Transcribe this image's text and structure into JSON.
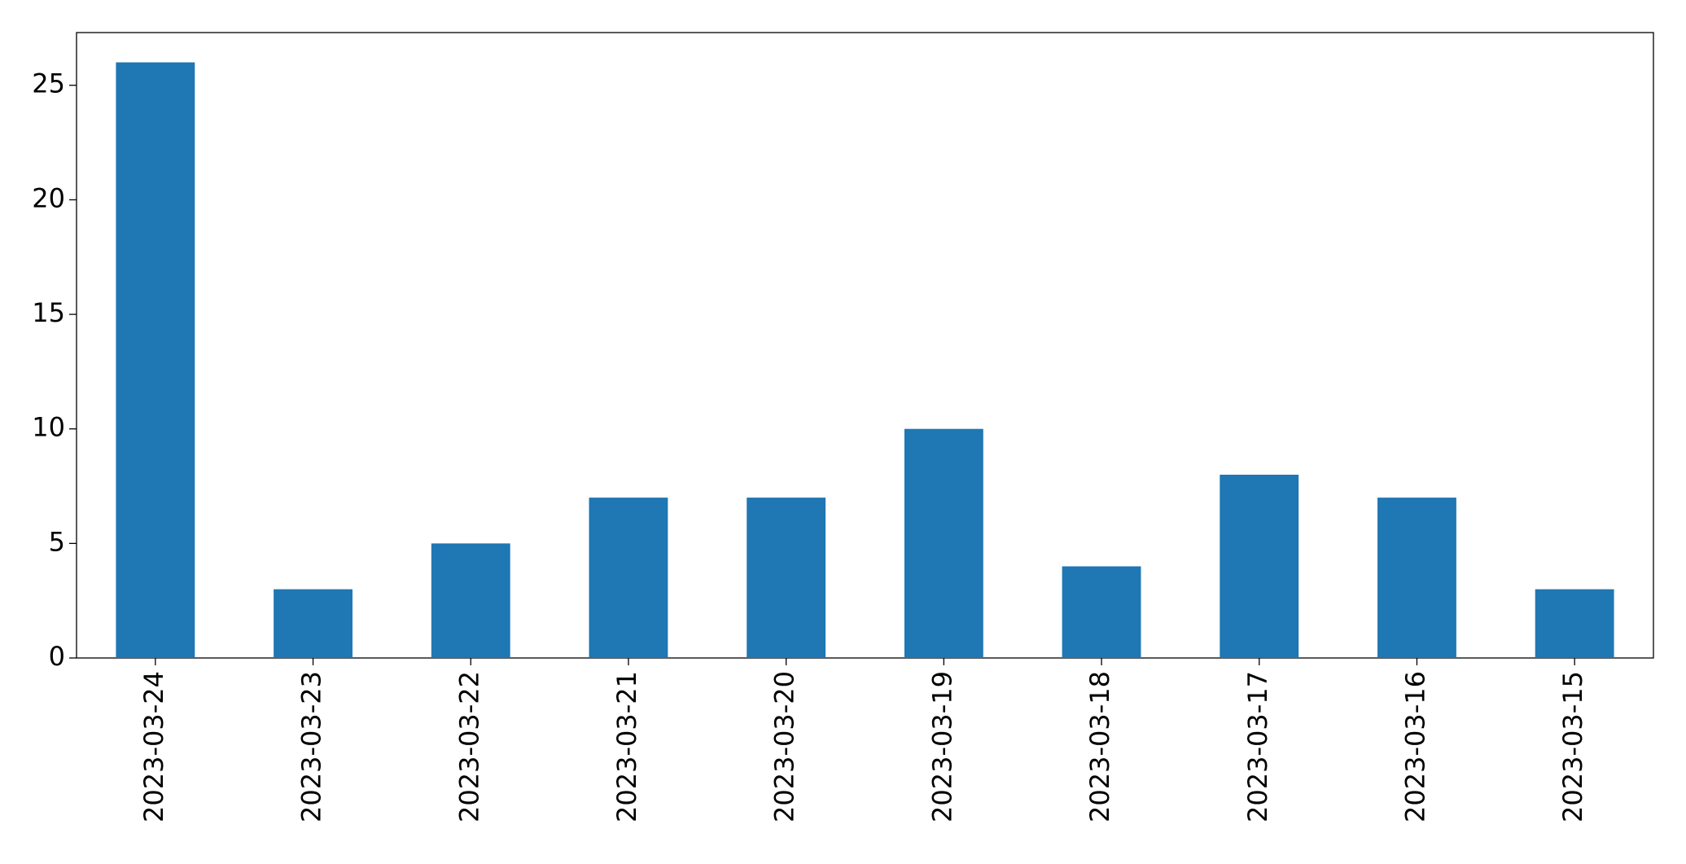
{
  "chart_data": {
    "type": "bar",
    "categories": [
      "2023-03-24",
      "2023-03-23",
      "2023-03-22",
      "2023-03-21",
      "2023-03-20",
      "2023-03-19",
      "2023-03-18",
      "2023-03-17",
      "2023-03-16",
      "2023-03-15"
    ],
    "values": [
      26,
      3,
      5,
      7,
      7,
      10,
      4,
      8,
      7,
      3
    ],
    "color": "#1f77b4",
    "ylim": [
      0,
      27.3
    ],
    "yticks": [
      0,
      5,
      10,
      15,
      20,
      25
    ],
    "grid": false
  }
}
